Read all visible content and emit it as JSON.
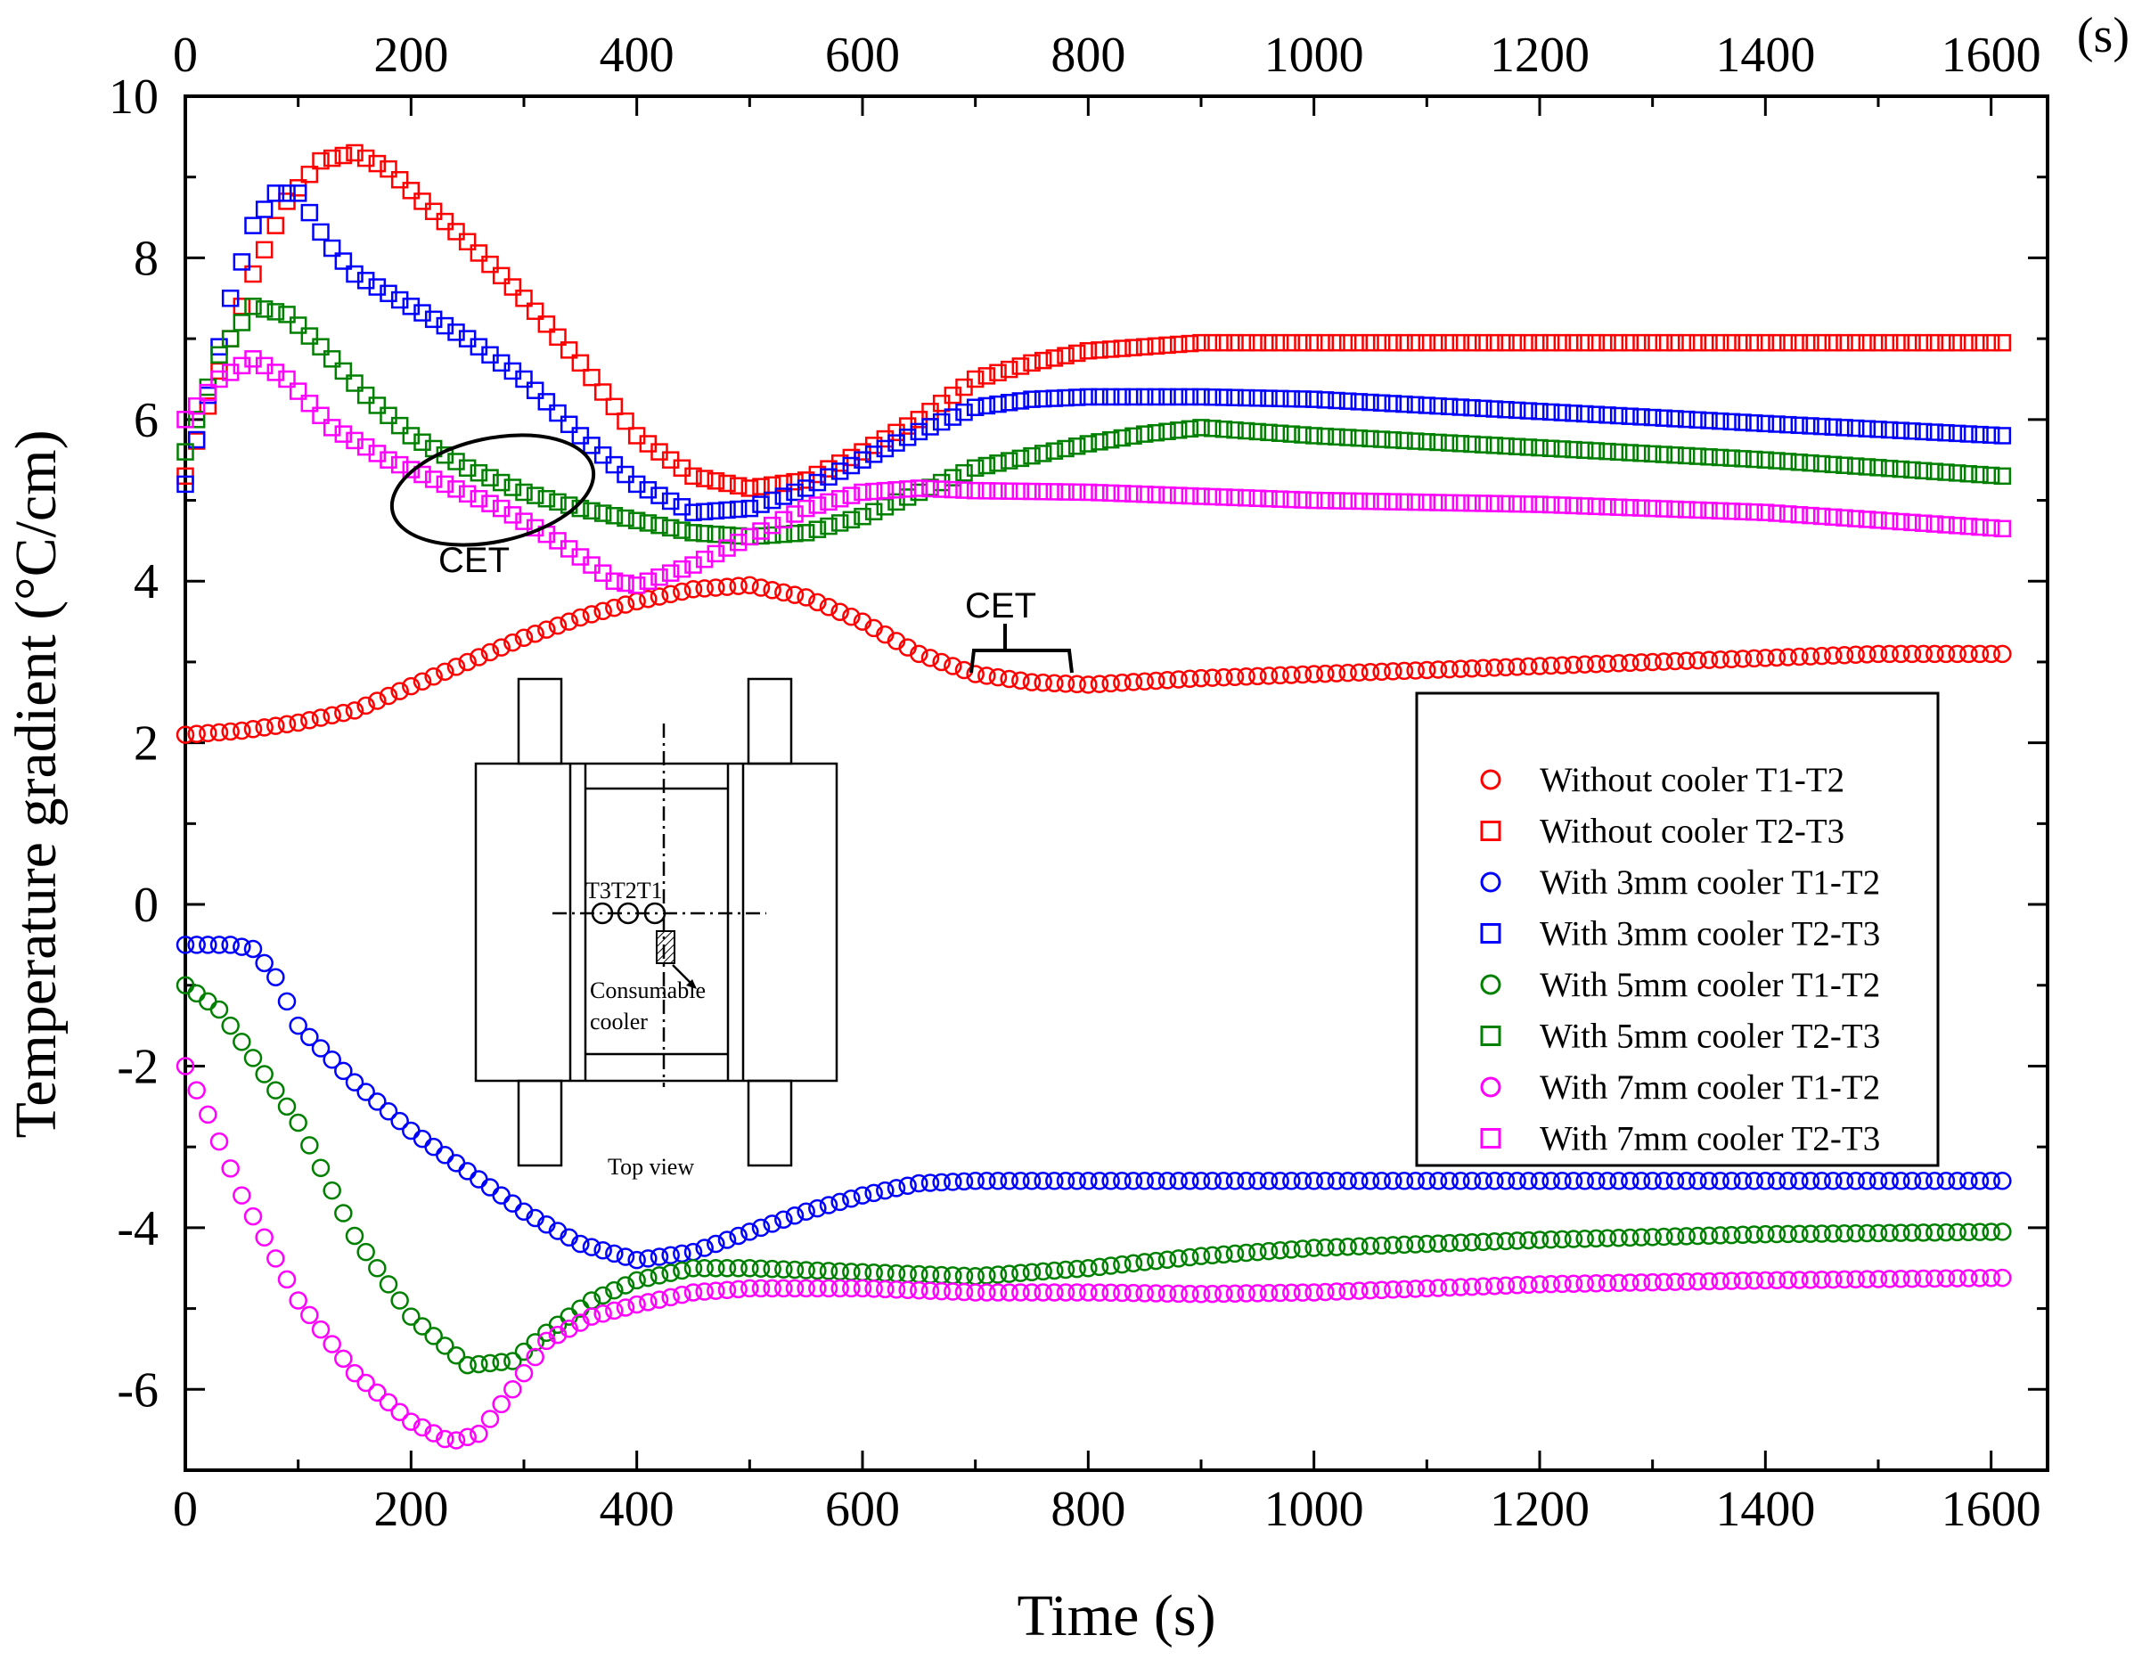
{
  "chart_data": {
    "type": "scatter",
    "title": "",
    "xlabel": "Time (s)",
    "ylabel": "Temperature gradient (°C/cm)",
    "top_axis_unit": "(s)",
    "xlim": [
      0,
      1650
    ],
    "ylim": [
      -7,
      10
    ],
    "x_ticks": [
      "0",
      "200",
      "400",
      "600",
      "800",
      "1000",
      "1200",
      "1400",
      "1600"
    ],
    "y_ticks": [
      "-6",
      "-4",
      "-2",
      "0",
      "2",
      "4",
      "6",
      "8",
      "10"
    ],
    "series": [
      {
        "name": "Without cooler T1-T2",
        "color": "#ff0000",
        "marker": "circle",
        "points": [
          [
            0,
            2.1
          ],
          [
            50,
            2.15
          ],
          [
            100,
            2.25
          ],
          [
            150,
            2.4
          ],
          [
            200,
            2.7
          ],
          [
            250,
            3.0
          ],
          [
            300,
            3.3
          ],
          [
            350,
            3.55
          ],
          [
            400,
            3.75
          ],
          [
            450,
            3.9
          ],
          [
            500,
            3.95
          ],
          [
            550,
            3.8
          ],
          [
            600,
            3.5
          ],
          [
            650,
            3.1
          ],
          [
            700,
            2.85
          ],
          [
            750,
            2.75
          ],
          [
            800,
            2.72
          ],
          [
            900,
            2.8
          ],
          [
            1000,
            2.85
          ],
          [
            1100,
            2.9
          ],
          [
            1200,
            2.95
          ],
          [
            1300,
            3.0
          ],
          [
            1400,
            3.05
          ],
          [
            1500,
            3.1
          ],
          [
            1610,
            3.1
          ]
        ]
      },
      {
        "name": "Without cooler T2-T3",
        "color": "#ff0000",
        "marker": "square",
        "points": [
          [
            0,
            5.3
          ],
          [
            30,
            6.6
          ],
          [
            60,
            7.8
          ],
          [
            90,
            8.7
          ],
          [
            120,
            9.2
          ],
          [
            150,
            9.3
          ],
          [
            180,
            9.1
          ],
          [
            210,
            8.7
          ],
          [
            250,
            8.2
          ],
          [
            300,
            7.5
          ],
          [
            350,
            6.7
          ],
          [
            400,
            5.8
          ],
          [
            450,
            5.3
          ],
          [
            500,
            5.15
          ],
          [
            550,
            5.25
          ],
          [
            600,
            5.6
          ],
          [
            650,
            6.0
          ],
          [
            700,
            6.5
          ],
          [
            750,
            6.7
          ],
          [
            800,
            6.85
          ],
          [
            900,
            6.95
          ],
          [
            1000,
            6.95
          ],
          [
            1200,
            6.95
          ],
          [
            1400,
            6.95
          ],
          [
            1610,
            6.95
          ]
        ]
      },
      {
        "name": "With 3mm cooler T1-T2",
        "color": "#0000ff",
        "marker": "circle",
        "points": [
          [
            0,
            -0.5
          ],
          [
            40,
            -0.5
          ],
          [
            60,
            -0.55
          ],
          [
            80,
            -0.9
          ],
          [
            100,
            -1.5
          ],
          [
            150,
            -2.2
          ],
          [
            200,
            -2.8
          ],
          [
            250,
            -3.3
          ],
          [
            300,
            -3.8
          ],
          [
            350,
            -4.2
          ],
          [
            400,
            -4.4
          ],
          [
            450,
            -4.3
          ],
          [
            500,
            -4.05
          ],
          [
            550,
            -3.8
          ],
          [
            600,
            -3.6
          ],
          [
            650,
            -3.45
          ],
          [
            700,
            -3.42
          ],
          [
            800,
            -3.42
          ],
          [
            1000,
            -3.42
          ],
          [
            1200,
            -3.42
          ],
          [
            1400,
            -3.42
          ],
          [
            1610,
            -3.42
          ]
        ]
      },
      {
        "name": "With 3mm cooler  T2-T3",
        "color": "#0000ff",
        "marker": "square",
        "points": [
          [
            0,
            5.2
          ],
          [
            20,
            6.3
          ],
          [
            40,
            7.5
          ],
          [
            60,
            8.4
          ],
          [
            80,
            8.8
          ],
          [
            100,
            8.8
          ],
          [
            125,
            8.2
          ],
          [
            150,
            7.8
          ],
          [
            200,
            7.4
          ],
          [
            250,
            7.0
          ],
          [
            300,
            6.5
          ],
          [
            350,
            5.8
          ],
          [
            400,
            5.2
          ],
          [
            450,
            4.85
          ],
          [
            500,
            4.9
          ],
          [
            550,
            5.15
          ],
          [
            600,
            5.5
          ],
          [
            650,
            5.85
          ],
          [
            700,
            6.15
          ],
          [
            750,
            6.25
          ],
          [
            800,
            6.28
          ],
          [
            900,
            6.28
          ],
          [
            1000,
            6.25
          ],
          [
            1200,
            6.1
          ],
          [
            1400,
            5.95
          ],
          [
            1610,
            5.8
          ]
        ]
      },
      {
        "name": "With 5mm cooler  T1-T2",
        "color": "#008000",
        "marker": "circle",
        "points": [
          [
            0,
            -1.0
          ],
          [
            30,
            -1.3
          ],
          [
            60,
            -1.9
          ],
          [
            100,
            -2.7
          ],
          [
            150,
            -4.1
          ],
          [
            200,
            -5.1
          ],
          [
            250,
            -5.7
          ],
          [
            290,
            -5.65
          ],
          [
            320,
            -5.3
          ],
          [
            360,
            -4.9
          ],
          [
            400,
            -4.65
          ],
          [
            450,
            -4.5
          ],
          [
            500,
            -4.5
          ],
          [
            600,
            -4.55
          ],
          [
            700,
            -4.6
          ],
          [
            800,
            -4.5
          ],
          [
            900,
            -4.35
          ],
          [
            1000,
            -4.25
          ],
          [
            1200,
            -4.15
          ],
          [
            1400,
            -4.08
          ],
          [
            1610,
            -4.05
          ]
        ]
      },
      {
        "name": "With 5mm cooler T2-T3",
        "color": "#008000",
        "marker": "square",
        "points": [
          [
            0,
            5.6
          ],
          [
            30,
            6.8
          ],
          [
            60,
            7.4
          ],
          [
            90,
            7.3
          ],
          [
            120,
            6.9
          ],
          [
            160,
            6.3
          ],
          [
            200,
            5.8
          ],
          [
            250,
            5.4
          ],
          [
            300,
            5.1
          ],
          [
            350,
            4.9
          ],
          [
            400,
            4.75
          ],
          [
            450,
            4.6
          ],
          [
            500,
            4.55
          ],
          [
            550,
            4.6
          ],
          [
            600,
            4.8
          ],
          [
            650,
            5.1
          ],
          [
            700,
            5.4
          ],
          [
            750,
            5.55
          ],
          [
            800,
            5.7
          ],
          [
            850,
            5.82
          ],
          [
            900,
            5.9
          ],
          [
            1000,
            5.8
          ],
          [
            1200,
            5.65
          ],
          [
            1400,
            5.5
          ],
          [
            1610,
            5.3
          ]
        ]
      },
      {
        "name": "With 7mm cooler  T1-T2",
        "color": "#ff00ff",
        "marker": "circle",
        "points": [
          [
            0,
            -2.0
          ],
          [
            20,
            -2.6
          ],
          [
            50,
            -3.6
          ],
          [
            100,
            -4.9
          ],
          [
            150,
            -5.8
          ],
          [
            200,
            -6.4
          ],
          [
            235,
            -6.65
          ],
          [
            260,
            -6.55
          ],
          [
            290,
            -6.0
          ],
          [
            320,
            -5.4
          ],
          [
            360,
            -5.1
          ],
          [
            400,
            -4.95
          ],
          [
            450,
            -4.8
          ],
          [
            500,
            -4.75
          ],
          [
            600,
            -4.75
          ],
          [
            700,
            -4.8
          ],
          [
            800,
            -4.8
          ],
          [
            900,
            -4.82
          ],
          [
            1000,
            -4.8
          ],
          [
            1200,
            -4.7
          ],
          [
            1400,
            -4.65
          ],
          [
            1610,
            -4.62
          ]
        ]
      },
      {
        "name": "With 7mm cooler T2-T3",
        "color": "#ff00ff",
        "marker": "square",
        "points": [
          [
            0,
            6.0
          ],
          [
            30,
            6.5
          ],
          [
            60,
            6.75
          ],
          [
            90,
            6.5
          ],
          [
            130,
            5.9
          ],
          [
            180,
            5.5
          ],
          [
            230,
            5.2
          ],
          [
            280,
            4.9
          ],
          [
            330,
            4.5
          ],
          [
            380,
            4.0
          ],
          [
            400,
            3.95
          ],
          [
            450,
            4.2
          ],
          [
            500,
            4.55
          ],
          [
            550,
            4.9
          ],
          [
            600,
            5.1
          ],
          [
            650,
            5.15
          ],
          [
            700,
            5.12
          ],
          [
            800,
            5.1
          ],
          [
            900,
            5.05
          ],
          [
            1000,
            5.0
          ],
          [
            1200,
            4.95
          ],
          [
            1400,
            4.85
          ],
          [
            1610,
            4.65
          ]
        ]
      }
    ],
    "annotations": [
      {
        "text": "CET",
        "x": 250,
        "y": 4.3
      },
      {
        "text": "CET",
        "x": 740,
        "y": 3.65
      }
    ],
    "legend": {
      "position": "right-center",
      "entries": [
        "Without cooler T1-T2",
        "Without cooler T2-T3",
        "With 3mm cooler T1-T2",
        "With 3mm cooler  T2-T3",
        "With 5mm cooler  T1-T2",
        "With 5mm cooler T2-T3",
        "With 7mm cooler  T1-T2",
        "With 7mm cooler T2-T3"
      ]
    },
    "inset": {
      "labels": {
        "thermocouples": "T3T2T1",
        "cooler_line1": "Consumable",
        "cooler_line2": "cooler",
        "caption": "Top view"
      }
    }
  }
}
